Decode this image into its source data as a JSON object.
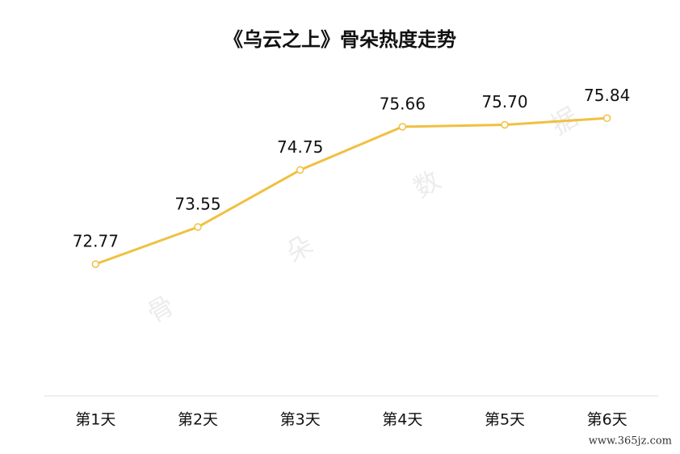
{
  "chart_data": {
    "type": "line",
    "title": "《乌云之上》骨朵热度走势",
    "categories": [
      "第1天",
      "第2天",
      "第3天",
      "第4天",
      "第5天",
      "第6天"
    ],
    "series": [
      {
        "name": "热度",
        "color": "#f0c040",
        "values": [
          72.77,
          73.55,
          74.75,
          75.66,
          75.7,
          75.84
        ],
        "value_labels": [
          "72.77",
          "73.55",
          "74.75",
          "75.66",
          "75.70",
          "75.84"
        ]
      }
    ],
    "ylim": [
      70,
      77
    ],
    "watermark": [
      "骨",
      "朵",
      "数",
      "据"
    ],
    "source": "www.365jz.com"
  }
}
